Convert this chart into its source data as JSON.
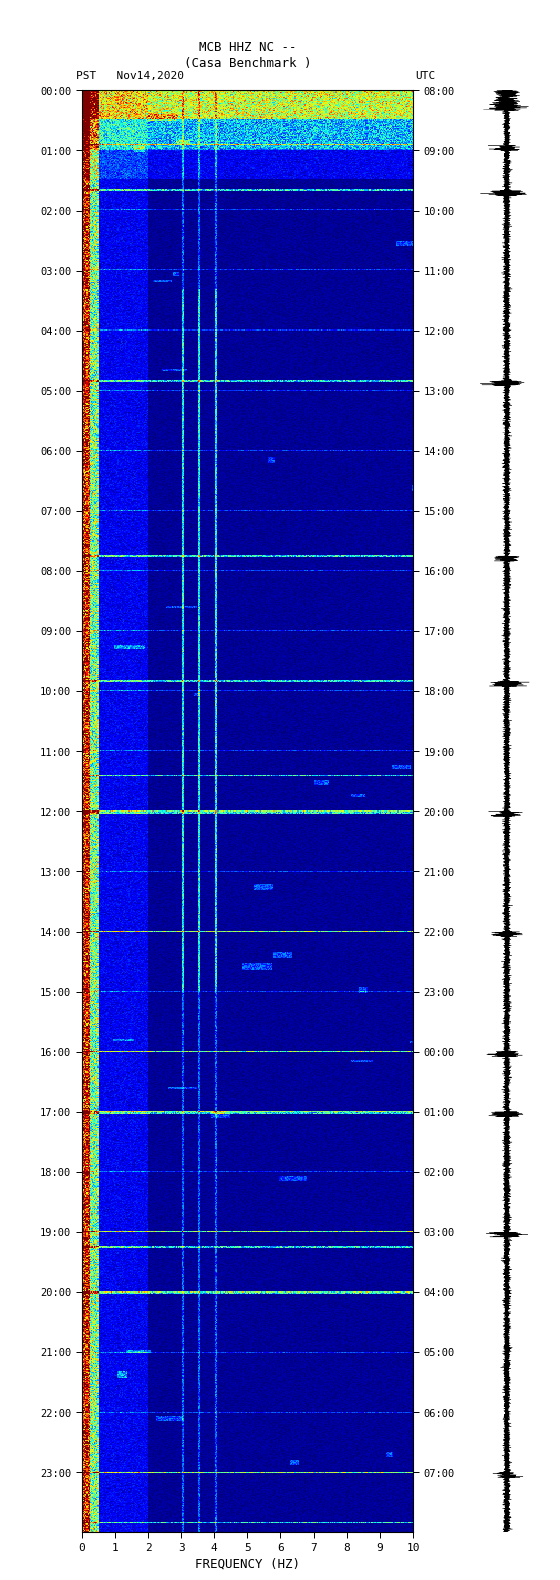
{
  "title_line1": "MCB HHZ NC --",
  "title_line2": "(Casa Benchmark )",
  "left_label": "PST   Nov14,2020",
  "right_label": "UTC",
  "xlabel": "FREQUENCY (HZ)",
  "xticks": [
    0,
    1,
    2,
    3,
    4,
    5,
    6,
    7,
    8,
    9,
    10
  ],
  "xlim": [
    0,
    10
  ],
  "pst_times": [
    "00:00",
    "01:00",
    "02:00",
    "03:00",
    "04:00",
    "05:00",
    "06:00",
    "07:00",
    "08:00",
    "09:00",
    "10:00",
    "11:00",
    "12:00",
    "13:00",
    "14:00",
    "15:00",
    "16:00",
    "17:00",
    "18:00",
    "19:00",
    "20:00",
    "21:00",
    "22:00",
    "23:00"
  ],
  "utc_times": [
    "08:00",
    "09:00",
    "10:00",
    "11:00",
    "12:00",
    "13:00",
    "14:00",
    "15:00",
    "16:00",
    "17:00",
    "18:00",
    "19:00",
    "20:00",
    "21:00",
    "22:00",
    "23:00",
    "00:00",
    "01:00",
    "02:00",
    "03:00",
    "04:00",
    "05:00",
    "06:00",
    "07:00"
  ],
  "fig_bg": "#ffffff",
  "usgs_color": "#006633",
  "fig_width": 5.52,
  "fig_height": 16.13,
  "dpi": 100,
  "n_time": 1440,
  "n_freq": 300
}
